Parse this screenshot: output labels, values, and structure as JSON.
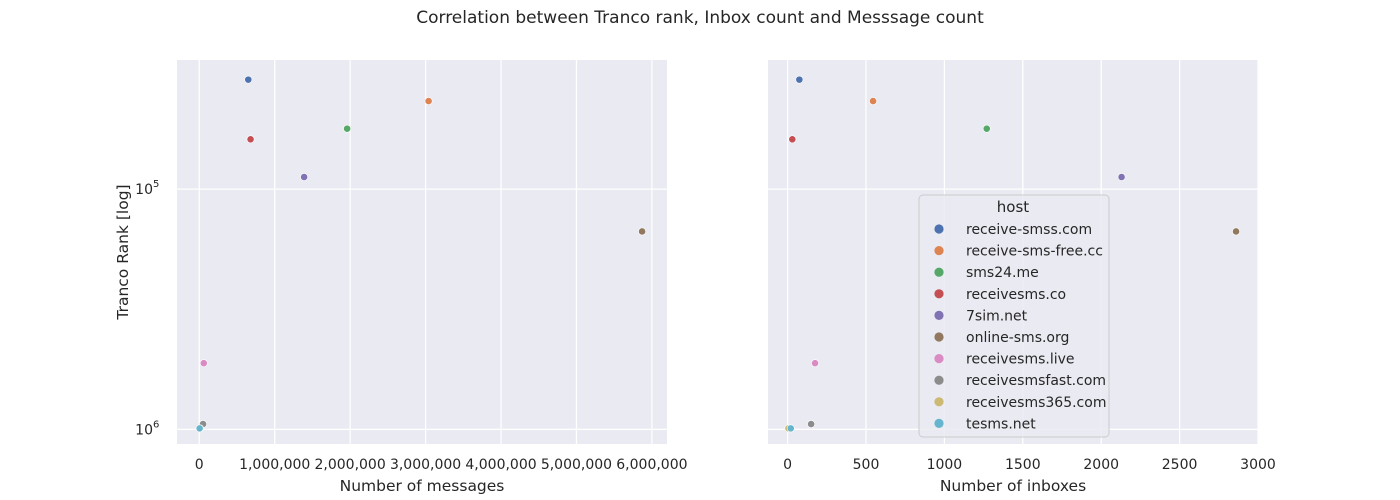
{
  "chart_data": {
    "title": "Correlation between Tranco rank, Inbox count and Messsage count",
    "type": "scatter",
    "yscale": "log",
    "yinverted": true,
    "grid": true,
    "legend": {
      "title": "host",
      "placement": "lower-center of right panel"
    },
    "hosts": [
      {
        "name": "receive-smss.com",
        "color": "#4c72b0",
        "messages": 650000,
        "inboxes": 75,
        "rank": 35000
      },
      {
        "name": "receive-sms-free.cc",
        "color": "#dd8452",
        "messages": 3040000,
        "inboxes": 545,
        "rank": 43000
      },
      {
        "name": "sms24.me",
        "color": "#55a868",
        "messages": 1960000,
        "inboxes": 1270,
        "rank": 56000
      },
      {
        "name": "receivesms.co",
        "color": "#c44e52",
        "messages": 680000,
        "inboxes": 30,
        "rank": 62000
      },
      {
        "name": "7sim.net",
        "color": "#8172b3",
        "messages": 1390000,
        "inboxes": 2130,
        "rank": 89000
      },
      {
        "name": "online-sms.org",
        "color": "#937860",
        "messages": 5870000,
        "inboxes": 2860,
        "rank": 150000
      },
      {
        "name": "receivesms.live",
        "color": "#da8bc3",
        "messages": 60000,
        "inboxes": 175,
        "rank": 530000
      },
      {
        "name": "receivesmsfast.com",
        "color": "#8c8c8c",
        "messages": 50000,
        "inboxes": 150,
        "rank": 950000
      },
      {
        "name": "receivesms365.com",
        "color": "#ccb974",
        "messages": 10000,
        "inboxes": 5,
        "rank": 990000
      },
      {
        "name": "tesms.net",
        "color": "#64b5cd",
        "messages": 5000,
        "inboxes": 20,
        "rank": 990000
      }
    ],
    "panels": [
      {
        "x_key": "messages",
        "xlabel": "Number of messages",
        "ylabel": "Tranco Rank [log]",
        "xlim": [
          -295000,
          6200000
        ],
        "xticks": [
          0,
          1000000,
          2000000,
          3000000,
          4000000,
          5000000,
          6000000
        ],
        "xtick_labels": [
          "0",
          "1,000,000",
          "2,000,000",
          "3,000,000",
          "4,000,000",
          "5,000,000",
          "6,000,000"
        ]
      },
      {
        "x_key": "inboxes",
        "xlabel": "Number of inboxes",
        "ylabel": "",
        "xlim": [
          -125,
          3000
        ],
        "xticks": [
          0,
          500,
          1000,
          1500,
          2000,
          2500,
          3000
        ],
        "xtick_labels": [
          "0",
          "500",
          "1000",
          "1500",
          "2000",
          "2500",
          "3000"
        ]
      }
    ],
    "ylim": [
      29000,
      1150000
    ],
    "yticks": [
      100000,
      1000000
    ],
    "ytick_labels": [
      {
        "base": "10",
        "exp": "5"
      },
      {
        "base": "10",
        "exp": "6"
      }
    ]
  }
}
